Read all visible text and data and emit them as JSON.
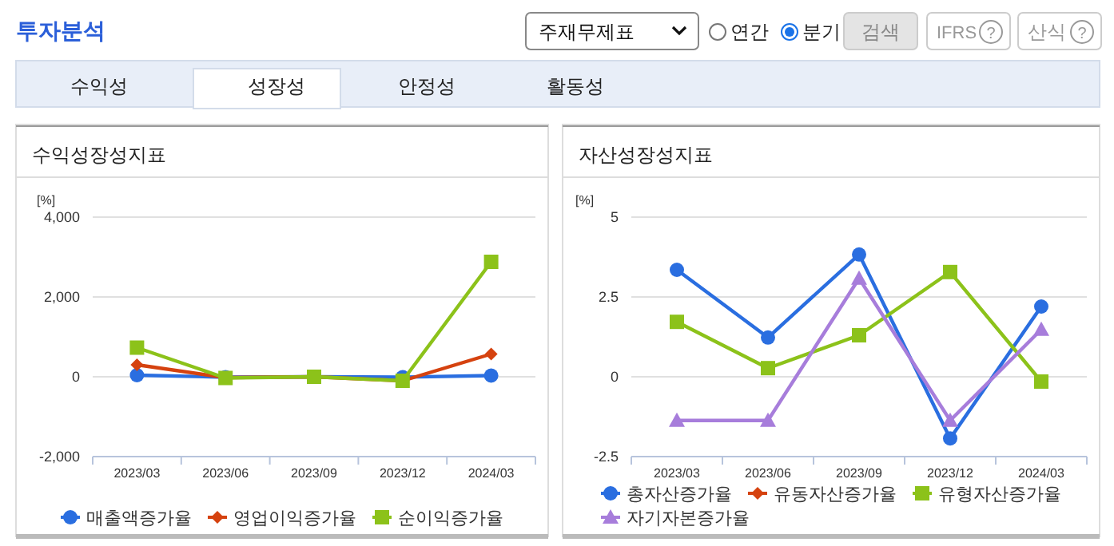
{
  "chart_data": [
    {
      "type": "other",
      "title": "투자분석",
      "annotations": [
        "주재무제표",
        "연간",
        "분기",
        "검색",
        "IFRS",
        "?",
        "산식",
        "?",
        "수익성",
        "성장성",
        "안정성",
        "활동성"
      ]
    },
    {
      "type": "line",
      "title": "수익성장성지표",
      "ylabel": "[%]",
      "categories": [
        "2023/03",
        "2023/06",
        "2023/09",
        "2023/12",
        "2024/03"
      ],
      "ylim": [
        -2000,
        4000
      ],
      "yticks": [
        {
          "value": -2000,
          "label": "-2,000"
        },
        0,
        {
          "value": 2000,
          "label": "2,000"
        },
        {
          "value": 4000,
          "label": "4,000"
        }
      ],
      "grid": "y",
      "legend": "bottom",
      "line_style": "solid",
      "series": [
        {
          "name": "매출액증가율",
          "color": "#2a6ee0",
          "marker": "circle",
          "values": [
            40,
            -10,
            0,
            -10,
            30
          ]
        },
        {
          "name": "영업이익증가율",
          "color": "#d5420f",
          "marker": "diamond",
          "values": [
            300,
            -20,
            0,
            -100,
            570
          ]
        },
        {
          "name": "순이익증가율",
          "color": "#8cc21a",
          "marker": "square",
          "values": [
            730,
            -30,
            0,
            -100,
            2880
          ]
        }
      ]
    },
    {
      "type": "line",
      "title": "자산성장성지표",
      "ylabel": "[%]",
      "categories": [
        "2023/03",
        "2023/06",
        "2023/09",
        "2023/12",
        "2024/03"
      ],
      "ylim": [
        -2.5,
        5
      ],
      "yticks": [
        -2.5,
        0,
        2.5,
        5
      ],
      "grid": "y",
      "legend": "bottom",
      "line_style": "solid",
      "series": [
        {
          "name": "총자산증가율",
          "color": "#2a6ee0",
          "marker": "circle",
          "values": [
            3.35,
            1.23,
            3.83,
            -1.93,
            2.2
          ]
        },
        {
          "name": "유동자산증가율",
          "color": "#d5420f",
          "marker": "diamond",
          "values": [
            null,
            null,
            null,
            null,
            null
          ]
        },
        {
          "name": "유형자산증가율",
          "color": "#8cc21a",
          "marker": "square",
          "values": [
            1.72,
            0.27,
            1.3,
            3.28,
            -0.15
          ]
        },
        {
          "name": "자기자본증가율",
          "color": "#a77ddb",
          "marker": "triangle",
          "values": [
            -1.37,
            -1.37,
            3.08,
            -1.37,
            1.48
          ]
        }
      ]
    }
  ]
}
